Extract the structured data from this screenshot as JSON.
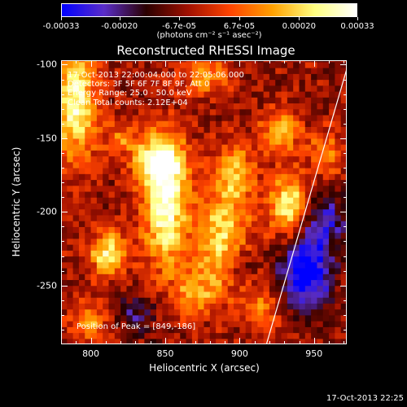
{
  "chart_data": {
    "type": "heatmap",
    "title": "Reconstructed RHESSI Image",
    "xlabel": "Heliocentric X (arcsec)",
    "ylabel": "Heliocentric Y (arcsec)",
    "xlim": [
      780,
      972
    ],
    "ylim": [
      -290,
      -97
    ],
    "x_ticks": [
      "800",
      "850",
      "900",
      "950"
    ],
    "x_tick_values": [
      800,
      850,
      900,
      950
    ],
    "y_ticks": [
      "-100",
      "-150",
      "-200",
      "-250"
    ],
    "y_tick_values": [
      -100,
      -150,
      -200,
      -250
    ],
    "colorbar": {
      "ticks": [
        "-0.00033",
        "-0.00020",
        "-6.7e-05",
        "6.7e-05",
        "0.00020",
        "0.00033"
      ],
      "tick_values": [
        -0.00033,
        -0.0002,
        -6.7e-05,
        6.7e-05,
        0.0002,
        0.00033
      ],
      "units": "(photons cm⁻² s⁻¹ asec⁻²)",
      "colormap": [
        "#0000ff",
        "#5a2dc8",
        "#2a0000",
        "#a01000",
        "#ff4400",
        "#ffa000",
        "#ffff80",
        "#ffffff"
      ]
    },
    "annotations": {
      "time": "17-Oct-2013 22:00:04.000 to 22:05:06.000",
      "detectors": "Detectors: 3F 5F 6F 7F 8F 9F, Att 0",
      "energy": "Energy Range: 25.0 - 50.0 keV",
      "clean": "Clean  Total counts: 2.12E+04",
      "peak": "Position of Peak = [849,-186]"
    },
    "peak_position": [
      849,
      -186
    ],
    "limb_line": [
      [
        918,
        -290
      ],
      [
        972,
        -103
      ]
    ],
    "emission_sources": [
      {
        "x": 850,
        "y": -195,
        "amp": 1.0,
        "sx": 10,
        "sy": 30
      },
      {
        "x": 845,
        "y": -165,
        "amp": 0.75,
        "sx": 12,
        "sy": 12
      },
      {
        "x": 790,
        "y": -125,
        "amp": 0.9,
        "sx": 10,
        "sy": 28
      },
      {
        "x": 812,
        "y": -228,
        "amp": 0.85,
        "sx": 9,
        "sy": 10
      },
      {
        "x": 888,
        "y": -218,
        "amp": 0.75,
        "sx": 13,
        "sy": 25
      },
      {
        "x": 933,
        "y": -195,
        "amp": 0.85,
        "sx": 9,
        "sy": 15
      },
      {
        "x": 928,
        "y": -145,
        "amp": 0.65,
        "sx": 9,
        "sy": 10
      },
      {
        "x": 898,
        "y": -172,
        "amp": 0.55,
        "sx": 9,
        "sy": 14
      },
      {
        "x": 958,
        "y": -160,
        "amp": 0.5,
        "sx": 8,
        "sy": 10
      },
      {
        "x": 870,
        "y": -255,
        "amp": 0.5,
        "sx": 10,
        "sy": 10
      },
      {
        "x": 800,
        "y": -275,
        "amp": 0.45,
        "sx": 10,
        "sy": 10
      },
      {
        "x": 915,
        "y": -265,
        "amp": 0.45,
        "sx": 8,
        "sy": 10
      },
      {
        "x": 876,
        "y": -108,
        "amp": 0.5,
        "sx": 12,
        "sy": 8
      },
      {
        "x": 820,
        "y": -150,
        "amp": 0.35,
        "sx": 8,
        "sy": 8
      },
      {
        "x": 945,
        "y": -240,
        "amp": -0.9,
        "sx": 12,
        "sy": 18
      },
      {
        "x": 958,
        "y": -205,
        "amp": -0.5,
        "sx": 10,
        "sy": 12
      },
      {
        "x": 900,
        "y": -235,
        "amp": -0.4,
        "sx": 8,
        "sy": 8
      },
      {
        "x": 830,
        "y": -270,
        "amp": -0.35,
        "sx": 10,
        "sy": 10
      }
    ]
  },
  "footer": {
    "date": "17-Oct-2013 22:25"
  }
}
